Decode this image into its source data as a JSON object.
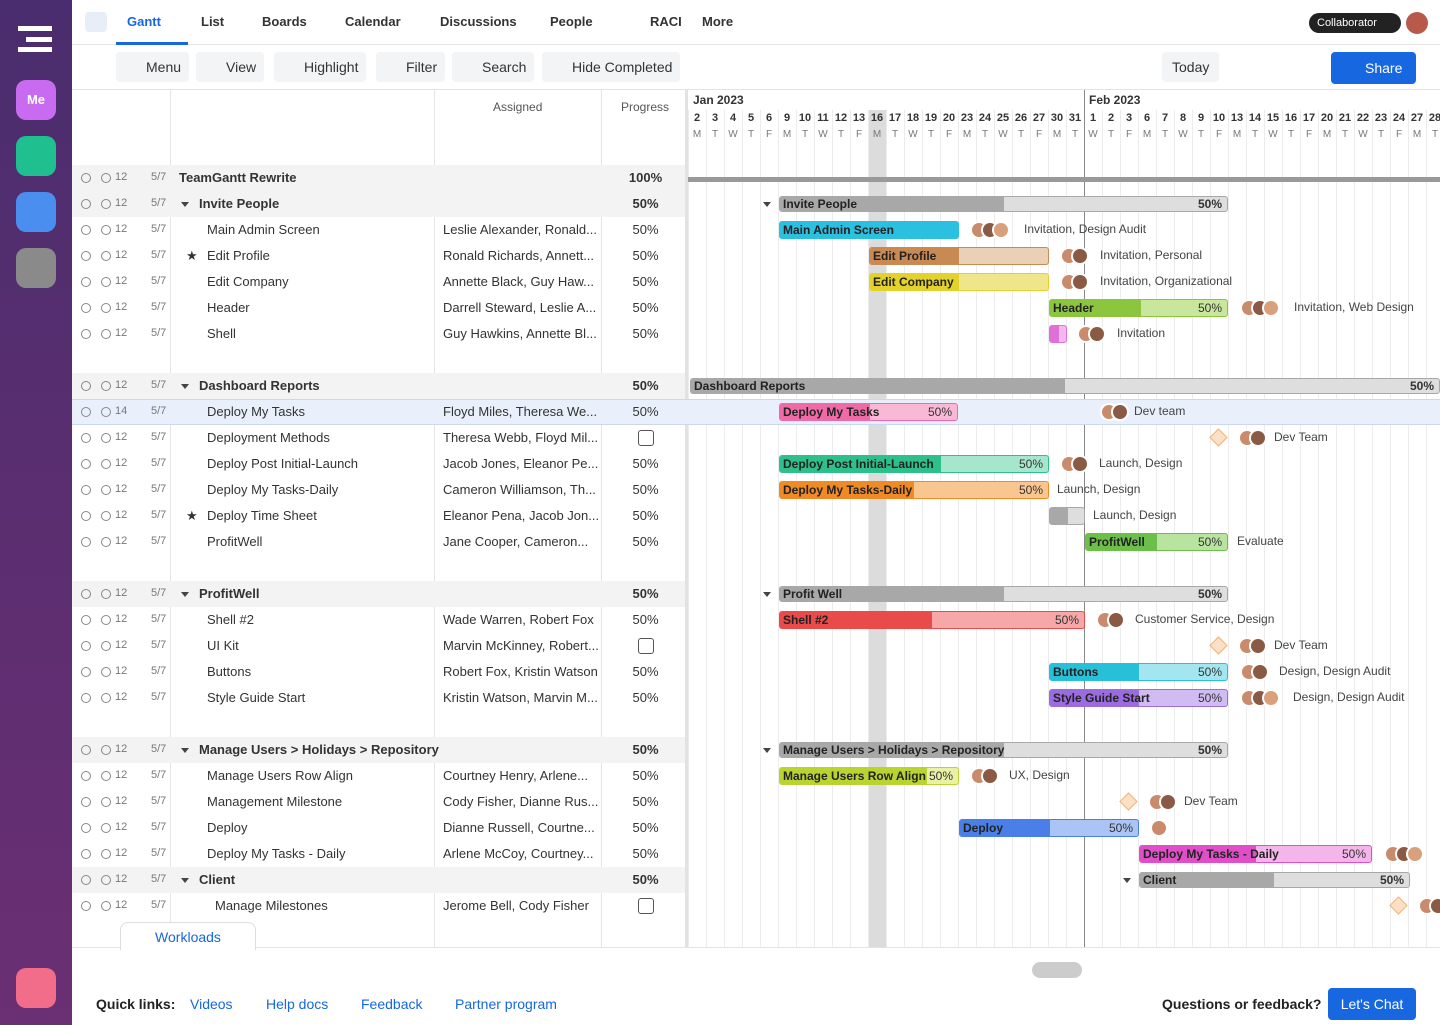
{
  "sidebar": {
    "me": "Me"
  },
  "nav": {
    "tabs": [
      "Gantt",
      "List",
      "Boards",
      "Calendar",
      "Discussions",
      "People",
      "RACI",
      "More"
    ],
    "role": "Collaborator"
  },
  "toolbar": {
    "buttons": [
      "Menu",
      "View",
      "Highlight",
      "Filter",
      "Search",
      "Hide Completed"
    ],
    "today": "Today",
    "share": "Share"
  },
  "table": {
    "headers": [
      "Assigned",
      "Progress"
    ],
    "rows": [
      {
        "comments": "12",
        "subtasks": "5/7",
        "name": "TeamGantt Rewrite",
        "progress": "100%",
        "group": true,
        "level": 0
      },
      {
        "comments": "12",
        "subtasks": "5/7",
        "name": "Invite People",
        "progress": "50%",
        "group": true,
        "level": 1,
        "bar": {
          "label": "Invite People",
          "percent": "50%"
        }
      },
      {
        "comments": "12",
        "subtasks": "5/7",
        "name": "Main Admin Screen",
        "assigned": "Leslie Alexander, Ronald...",
        "progress": "50%",
        "level": 2,
        "bar": {
          "label": "Main Admin Screen"
        },
        "people": "Invitation, Design Audit"
      },
      {
        "comments": "12",
        "subtasks": "5/7",
        "name": "Edit Profile",
        "assigned": "Ronald Richards, Annett...",
        "progress": "50%",
        "level": 2,
        "star": true,
        "bar": {
          "label": "Edit Profile"
        },
        "people": "Invitation, Personal"
      },
      {
        "comments": "12",
        "subtasks": "5/7",
        "name": "Edit Company",
        "assigned": "Annette Black, Guy Haw...",
        "progress": "50%",
        "level": 2,
        "bar": {
          "label": "Edit Company"
        },
        "people": "Invitation, Organizational"
      },
      {
        "comments": "12",
        "subtasks": "5/7",
        "name": "Header",
        "assigned": "Darrell Steward, Leslie A...",
        "progress": "50%",
        "level": 2,
        "bar": {
          "label": "Header",
          "percent": "50%"
        },
        "people": "Invitation, Web Design"
      },
      {
        "comments": "12",
        "subtasks": "5/7",
        "name": "Shell",
        "assigned": "Guy Hawkins, Annette Bl...",
        "progress": "50%",
        "level": 2,
        "people": "Invitation"
      },
      {
        "comments": "12",
        "subtasks": "5/7",
        "name": "Dashboard Reports",
        "progress": "50%",
        "group": true,
        "level": 1,
        "bar": {
          "label": "Dashboard Reports",
          "percent": "50%"
        }
      },
      {
        "comments": "14",
        "subtasks": "5/7",
        "name": "Deploy My Tasks",
        "assigned": "Floyd Miles, Theresa We...",
        "progress": "50%",
        "level": 2,
        "bar": {
          "label": "Deploy My Tasks",
          "percent": "50%"
        },
        "people": "Dev team"
      },
      {
        "comments": "12",
        "subtasks": "5/7",
        "name": "Deployment Methods",
        "assigned": "Theresa Webb, Floyd Mil...",
        "checkbox": true,
        "level": 2,
        "people": "Dev Team"
      },
      {
        "comments": "12",
        "subtasks": "5/7",
        "name": "Deploy Post Initial-Launch",
        "assigned": "Jacob Jones, Eleanor Pe...",
        "progress": "50%",
        "level": 2,
        "bar": {
          "label": "Deploy Post Initial-Launch",
          "percent": "50%"
        },
        "people": "Launch, Design"
      },
      {
        "comments": "12",
        "subtasks": "5/7",
        "name": "Deploy My Tasks-Daily",
        "assigned": "Cameron Williamson, Th...",
        "progress": "50%",
        "level": 2,
        "bar": {
          "label": "Deploy My Tasks-Daily",
          "percent": "50%"
        },
        "people": "Launch, Design"
      },
      {
        "comments": "12",
        "subtasks": "5/7",
        "name": "Deploy Time Sheet",
        "assigned": "Eleanor Pena, Jacob Jon...",
        "progress": "50%",
        "level": 2,
        "star": true,
        "people": "Launch, Design"
      },
      {
        "comments": "12",
        "subtasks": "5/7",
        "name": "ProfitWell",
        "assigned": "Jane Cooper, Cameron...",
        "progress": "50%",
        "level": 2,
        "bar": {
          "label": "ProfitWell",
          "percent": "50%"
        },
        "people": "Evaluate"
      },
      {
        "comments": "12",
        "subtasks": "5/7",
        "name": "ProfitWell",
        "progress": "50%",
        "group": true,
        "level": 1,
        "bar": {
          "label": "Profit Well",
          "percent": "50%"
        }
      },
      {
        "comments": "12",
        "subtasks": "5/7",
        "name": "Shell #2",
        "assigned": "Wade Warren, Robert Fox",
        "progress": "50%",
        "level": 2,
        "bar": {
          "label": "Shell #2",
          "percent": "50%"
        },
        "people": "Customer Service, Design"
      },
      {
        "comments": "12",
        "subtasks": "5/7",
        "name": "UI Kit",
        "assigned": "Marvin McKinney, Robert...",
        "checkbox": true,
        "level": 2,
        "people": "Dev Team"
      },
      {
        "comments": "12",
        "subtasks": "5/7",
        "name": "Buttons",
        "assigned": "Robert Fox, Kristin Watson",
        "progress": "50%",
        "level": 2,
        "bar": {
          "label": "Buttons",
          "percent": "50%"
        },
        "people": "Design, Design Audit"
      },
      {
        "comments": "12",
        "subtasks": "5/7",
        "name": "Style Guide Start",
        "assigned": "Kristin Watson, Marvin M...",
        "progress": "50%",
        "level": 2,
        "bar": {
          "label": "Style Guide Start",
          "percent": "50%"
        },
        "people": "Design, Design Audit"
      },
      {
        "comments": "12",
        "subtasks": "5/7",
        "name": "Manage Users > Holidays > Repository",
        "progress": "50%",
        "group": true,
        "level": 1,
        "bar": {
          "label": "Manage Users > Holidays > Repository",
          "percent": "50%"
        }
      },
      {
        "comments": "12",
        "subtasks": "5/7",
        "name": "Manage Users Row Align",
        "assigned": "Courtney Henry, Arlene...",
        "progress": "50%",
        "level": 2,
        "bar": {
          "label": "Manage Users Row Align",
          "percent": "50%"
        },
        "people": "UX, Design"
      },
      {
        "comments": "12",
        "subtasks": "5/7",
        "name": "Management Milestone",
        "assigned": "Cody Fisher, Dianne Rus...",
        "progress": "50%",
        "level": 2,
        "people": "Dev Team"
      },
      {
        "comments": "12",
        "subtasks": "5/7",
        "name": "Deploy",
        "assigned": "Dianne Russell, Courtne...",
        "progress": "50%",
        "level": 2,
        "bar": {
          "label": "Deploy",
          "percent": "50%"
        }
      },
      {
        "comments": "12",
        "subtasks": "5/7",
        "name": "Deploy My Tasks - Daily",
        "assigned": "Arlene McCoy, Courtney...",
        "progress": "50%",
        "level": 2,
        "bar": {
          "label": "Deploy My Tasks - Daily",
          "percent": "50%"
        }
      },
      {
        "comments": "12",
        "subtasks": "5/7",
        "name": "Client",
        "progress": "50%",
        "group": true,
        "level": 1,
        "bar": {
          "label": "Client",
          "percent": "50%"
        }
      },
      {
        "comments": "12",
        "subtasks": "5/7",
        "name": "Manage Milestones",
        "assigned": "Jerome Bell, Cody Fisher",
        "checkbox": true,
        "level": 3
      }
    ]
  },
  "timeline": {
    "months": [
      "Jan 2023",
      "Feb 2023"
    ],
    "days": [
      {
        "day": 2,
        "weekday": "M"
      },
      {
        "day": 3,
        "weekday": "T"
      },
      {
        "day": 4,
        "weekday": "W"
      },
      {
        "day": 5,
        "weekday": "T"
      },
      {
        "day": 6,
        "weekday": "F"
      },
      {
        "day": 9,
        "weekday": "M"
      },
      {
        "day": 10,
        "weekday": "T"
      },
      {
        "day": 11,
        "weekday": "W"
      },
      {
        "day": 12,
        "weekday": "T"
      },
      {
        "day": 13,
        "weekday": "F"
      },
      {
        "day": 16,
        "weekday": "M"
      },
      {
        "day": 17,
        "weekday": "T"
      },
      {
        "day": 18,
        "weekday": "W"
      },
      {
        "day": 19,
        "weekday": "T"
      },
      {
        "day": 20,
        "weekday": "F"
      },
      {
        "day": 23,
        "weekday": "M"
      },
      {
        "day": 24,
        "weekday": "T"
      },
      {
        "day": 25,
        "weekday": "W"
      },
      {
        "day": 26,
        "weekday": "T"
      },
      {
        "day": 27,
        "weekday": "F"
      },
      {
        "day": 30,
        "weekday": "M"
      },
      {
        "day": 31,
        "weekday": "T"
      },
      {
        "day": 1,
        "weekday": "W"
      },
      {
        "day": 2,
        "weekday": "T"
      },
      {
        "day": 3,
        "weekday": "F"
      },
      {
        "day": 6,
        "weekday": "M"
      },
      {
        "day": 7,
        "weekday": "T"
      },
      {
        "day": 8,
        "weekday": "W"
      },
      {
        "day": 9,
        "weekday": "T"
      },
      {
        "day": 10,
        "weekday": "F"
      },
      {
        "day": 13,
        "weekday": "M"
      },
      {
        "day": 14,
        "weekday": "T"
      },
      {
        "day": 15,
        "weekday": "W"
      },
      {
        "day": 16,
        "weekday": "T"
      },
      {
        "day": 17,
        "weekday": "F"
      },
      {
        "day": 20,
        "weekday": "M"
      },
      {
        "day": 21,
        "weekday": "T"
      },
      {
        "day": 22,
        "weekday": "W"
      },
      {
        "day": 23,
        "weekday": "T"
      },
      {
        "day": 24,
        "weekday": "F"
      },
      {
        "day": 27,
        "weekday": "M"
      },
      {
        "day": 28,
        "weekday": "T"
      }
    ]
  },
  "footer": {
    "workloads": "Workloads",
    "quick_links_label": "Quick links:",
    "quick_links": [
      "Videos",
      "Help docs",
      "Feedback",
      "Partner program"
    ],
    "question": "Questions or feedback?",
    "chat": "Let's Chat"
  }
}
